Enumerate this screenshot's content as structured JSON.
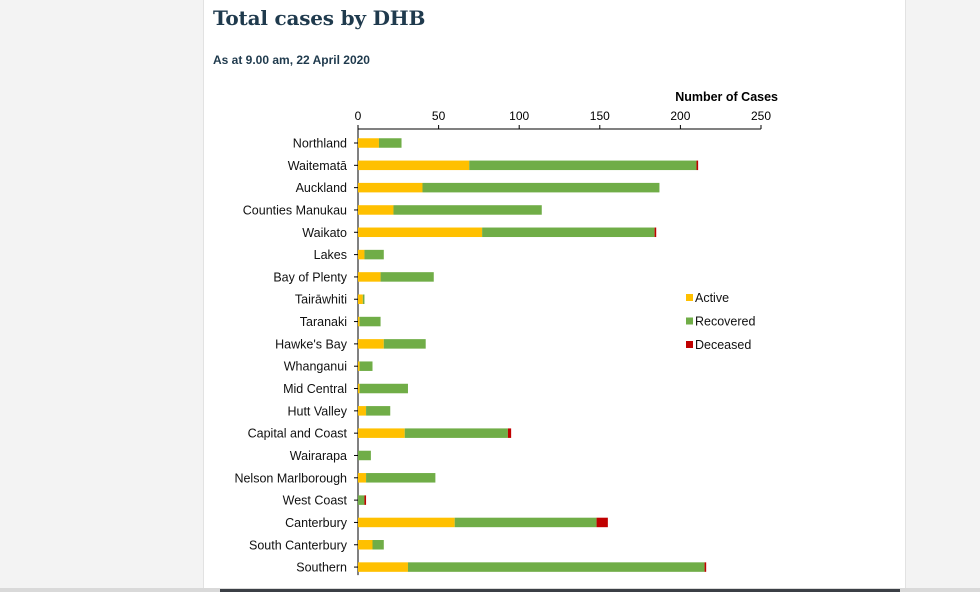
{
  "page": {
    "title": "Total cases by DHB",
    "subtitle": "As at 9.00 am, 22 April 2020"
  },
  "chart_data": {
    "type": "bar",
    "orientation": "horizontal",
    "stacked": true,
    "title": "Total cases by DHB",
    "subtitle": "As at 9.00 am, 22 April 2020",
    "xlabel": "Number of Cases",
    "ylabel": "",
    "xlim": [
      0,
      250
    ],
    "xticks": [
      0,
      50,
      100,
      150,
      200,
      250
    ],
    "legend_position": "right",
    "categories": [
      "Northland",
      "Waitematā",
      "Auckland",
      "Counties Manukau",
      "Waikato",
      "Lakes",
      "Bay of Plenty",
      "Tairāwhiti",
      "Taranaki",
      "Hawke's Bay",
      "Whanganui",
      "Mid Central",
      "Hutt Valley",
      "Capital and Coast",
      "Wairarapa",
      "Nelson Marlborough",
      "West Coast",
      "Canterbury",
      "South Canterbury",
      "Southern"
    ],
    "series": [
      {
        "name": "Active",
        "color": "#ffc000",
        "values": [
          13,
          69,
          40,
          22,
          77,
          4,
          14,
          3,
          1,
          16,
          1,
          1,
          5,
          29,
          0,
          5,
          0,
          60,
          9,
          31
        ]
      },
      {
        "name": "Recovered",
        "color": "#70ad47",
        "values": [
          14,
          141,
          147,
          92,
          107,
          12,
          33,
          1,
          13,
          26,
          8,
          30,
          15,
          64,
          8,
          43,
          4,
          88,
          7,
          184
        ]
      },
      {
        "name": "Deceased",
        "color": "#c00000",
        "values": [
          0,
          1,
          0,
          0,
          1,
          0,
          0,
          0,
          0,
          0,
          0,
          0,
          0,
          2,
          0,
          0,
          1,
          7,
          0,
          1
        ]
      }
    ]
  }
}
